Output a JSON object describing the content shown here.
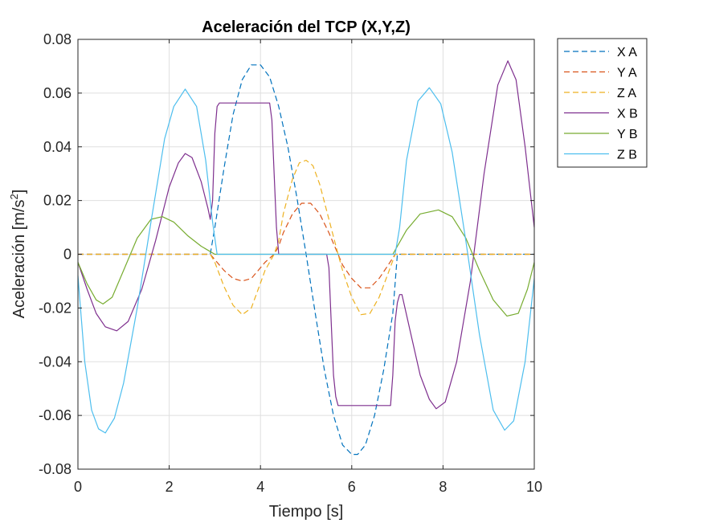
{
  "chart_data": {
    "type": "line",
    "title": "Aceleración del TCP (X,Y,Z)",
    "xlabel": "Tiempo [s]",
    "ylabel_main": "Aceleración [m/s",
    "ylabel_sup": "2",
    "ylabel_end": "]",
    "xlim": [
      0,
      10
    ],
    "ylim": [
      -0.08,
      0.08
    ],
    "xticks": [
      0,
      2,
      4,
      6,
      8,
      10
    ],
    "xtick_labels": [
      "0",
      "2",
      "4",
      "6",
      "8",
      "10"
    ],
    "yticks": [
      -0.08,
      -0.06,
      -0.04,
      -0.02,
      0,
      0.02,
      0.04,
      0.06,
      0.08
    ],
    "ytick_labels": [
      "-0.08",
      "-0.06",
      "-0.04",
      "-0.02",
      "0",
      "0.02",
      "0.04",
      "0.06",
      "0.08"
    ],
    "grid": true,
    "legend_position": "outside-top-right",
    "series": [
      {
        "name": "X A",
        "color": "#0072BD",
        "style": "dashed",
        "x": [
          0,
          2.9,
          3.0,
          3.2,
          3.4,
          3.6,
          3.8,
          4.0,
          4.2,
          4.4,
          4.6,
          4.8,
          5.0,
          5.2,
          5.4,
          5.6,
          5.8,
          6.0,
          6.13,
          6.3,
          6.5,
          6.7,
          6.9,
          7.0,
          10
        ],
        "y": [
          0,
          0,
          0.01,
          0.032,
          0.052,
          0.065,
          0.0705,
          0.0705,
          0.066,
          0.055,
          0.04,
          0.021,
          0.0,
          -0.022,
          -0.043,
          -0.06,
          -0.071,
          -0.0745,
          -0.0745,
          -0.071,
          -0.06,
          -0.043,
          -0.022,
          0,
          0
        ]
      },
      {
        "name": "Y A",
        "color": "#D95319",
        "style": "dashed",
        "x": [
          0,
          2.9,
          3.0,
          3.2,
          3.4,
          3.6,
          3.8,
          3.95,
          4.1,
          4.3,
          4.4,
          4.5,
          4.7,
          4.9,
          5.1,
          5.3,
          5.5,
          5.7,
          5.8,
          6.0,
          6.2,
          6.4,
          6.6,
          6.8,
          6.95,
          10
        ],
        "y": [
          0,
          0,
          -0.002,
          -0.006,
          -0.009,
          -0.01,
          -0.009,
          -0.006,
          -0.003,
          0,
          0.003,
          0.008,
          0.015,
          0.019,
          0.019,
          0.015,
          0.008,
          0,
          -0.004,
          -0.009,
          -0.0125,
          -0.0125,
          -0.009,
          -0.004,
          0,
          0
        ]
      },
      {
        "name": "Z A",
        "color": "#EDB120",
        "style": "dashed",
        "x": [
          0,
          2.9,
          3.0,
          3.2,
          3.4,
          3.6,
          3.8,
          3.95,
          4.1,
          4.3,
          4.4,
          4.5,
          4.7,
          4.85,
          5.0,
          5.15,
          5.3,
          5.5,
          5.7,
          5.8,
          6.0,
          6.2,
          6.4,
          6.6,
          6.8,
          6.95,
          10
        ],
        "y": [
          0,
          0,
          -0.003,
          -0.012,
          -0.019,
          -0.0225,
          -0.02,
          -0.013,
          -0.006,
          0,
          0.005,
          0.015,
          0.028,
          0.034,
          0.035,
          0.033,
          0.026,
          0.013,
          0,
          -0.006,
          -0.016,
          -0.0225,
          -0.022,
          -0.016,
          -0.007,
          0,
          0
        ]
      },
      {
        "name": "X B",
        "color": "#7E2F8E",
        "style": "solid",
        "x": [
          0,
          0.2,
          0.4,
          0.6,
          0.85,
          1.1,
          1.4,
          1.7,
          2.0,
          2.2,
          2.35,
          2.5,
          2.7,
          2.85,
          2.9,
          2.95,
          3.0,
          3.05,
          3.1,
          3.2,
          4.2,
          4.25,
          4.3,
          4.35,
          4.4,
          4.5,
          5.45,
          5.5,
          5.55,
          5.6,
          5.65,
          5.7,
          5.8,
          6.85,
          6.9,
          6.95,
          7.0,
          7.05,
          7.1,
          7.3,
          7.5,
          7.7,
          7.85,
          8.05,
          8.3,
          8.6,
          8.9,
          9.2,
          9.42,
          9.6,
          9.8,
          10.0
        ],
        "y": [
          -0.003,
          -0.013,
          -0.022,
          -0.027,
          -0.0285,
          -0.025,
          -0.013,
          0.005,
          0.025,
          0.034,
          0.0375,
          0.036,
          0.027,
          0.017,
          0.013,
          0.02,
          0.045,
          0.055,
          0.0563,
          0.0563,
          0.0563,
          0.05,
          0.03,
          0.01,
          0,
          0,
          0,
          -0.005,
          -0.025,
          -0.045,
          -0.053,
          -0.0563,
          -0.0563,
          -0.0563,
          -0.045,
          -0.025,
          -0.018,
          -0.015,
          -0.015,
          -0.03,
          -0.045,
          -0.054,
          -0.0575,
          -0.055,
          -0.04,
          -0.01,
          0.03,
          0.063,
          0.072,
          0.065,
          0.04,
          0.01
        ]
      },
      {
        "name": "Y B",
        "color": "#77AC30",
        "style": "solid",
        "x": [
          0,
          0.2,
          0.4,
          0.55,
          0.75,
          1.0,
          1.3,
          1.6,
          1.85,
          2.1,
          2.4,
          2.7,
          3.0,
          3.1,
          6.9,
          7.0,
          7.2,
          7.5,
          7.9,
          8.2,
          8.5,
          8.8,
          9.1,
          9.4,
          9.65,
          9.85,
          10.0
        ],
        "y": [
          -0.003,
          -0.011,
          -0.017,
          -0.0185,
          -0.016,
          -0.006,
          0.006,
          0.013,
          0.014,
          0.012,
          0.007,
          0.003,
          0,
          0,
          0,
          0.003,
          0.009,
          0.015,
          0.0165,
          0.014,
          0.006,
          -0.006,
          -0.017,
          -0.023,
          -0.022,
          -0.013,
          -0.003
        ]
      },
      {
        "name": "Z B",
        "color": "#4DBEEE",
        "style": "solid",
        "x": [
          0,
          0.15,
          0.3,
          0.45,
          0.6,
          0.8,
          1.0,
          1.3,
          1.6,
          1.9,
          2.1,
          2.35,
          2.6,
          2.8,
          2.95,
          3.05,
          6.95,
          7.05,
          7.2,
          7.45,
          7.7,
          7.95,
          8.2,
          8.5,
          8.8,
          9.1,
          9.35,
          9.55,
          9.8,
          10.0
        ],
        "y": [
          -0.008,
          -0.04,
          -0.058,
          -0.065,
          -0.0665,
          -0.061,
          -0.048,
          -0.02,
          0.012,
          0.043,
          0.055,
          0.0615,
          0.055,
          0.035,
          0.012,
          0,
          0,
          0.01,
          0.035,
          0.057,
          0.062,
          0.056,
          0.038,
          0.005,
          -0.03,
          -0.058,
          -0.0655,
          -0.062,
          -0.04,
          -0.009
        ]
      }
    ]
  }
}
